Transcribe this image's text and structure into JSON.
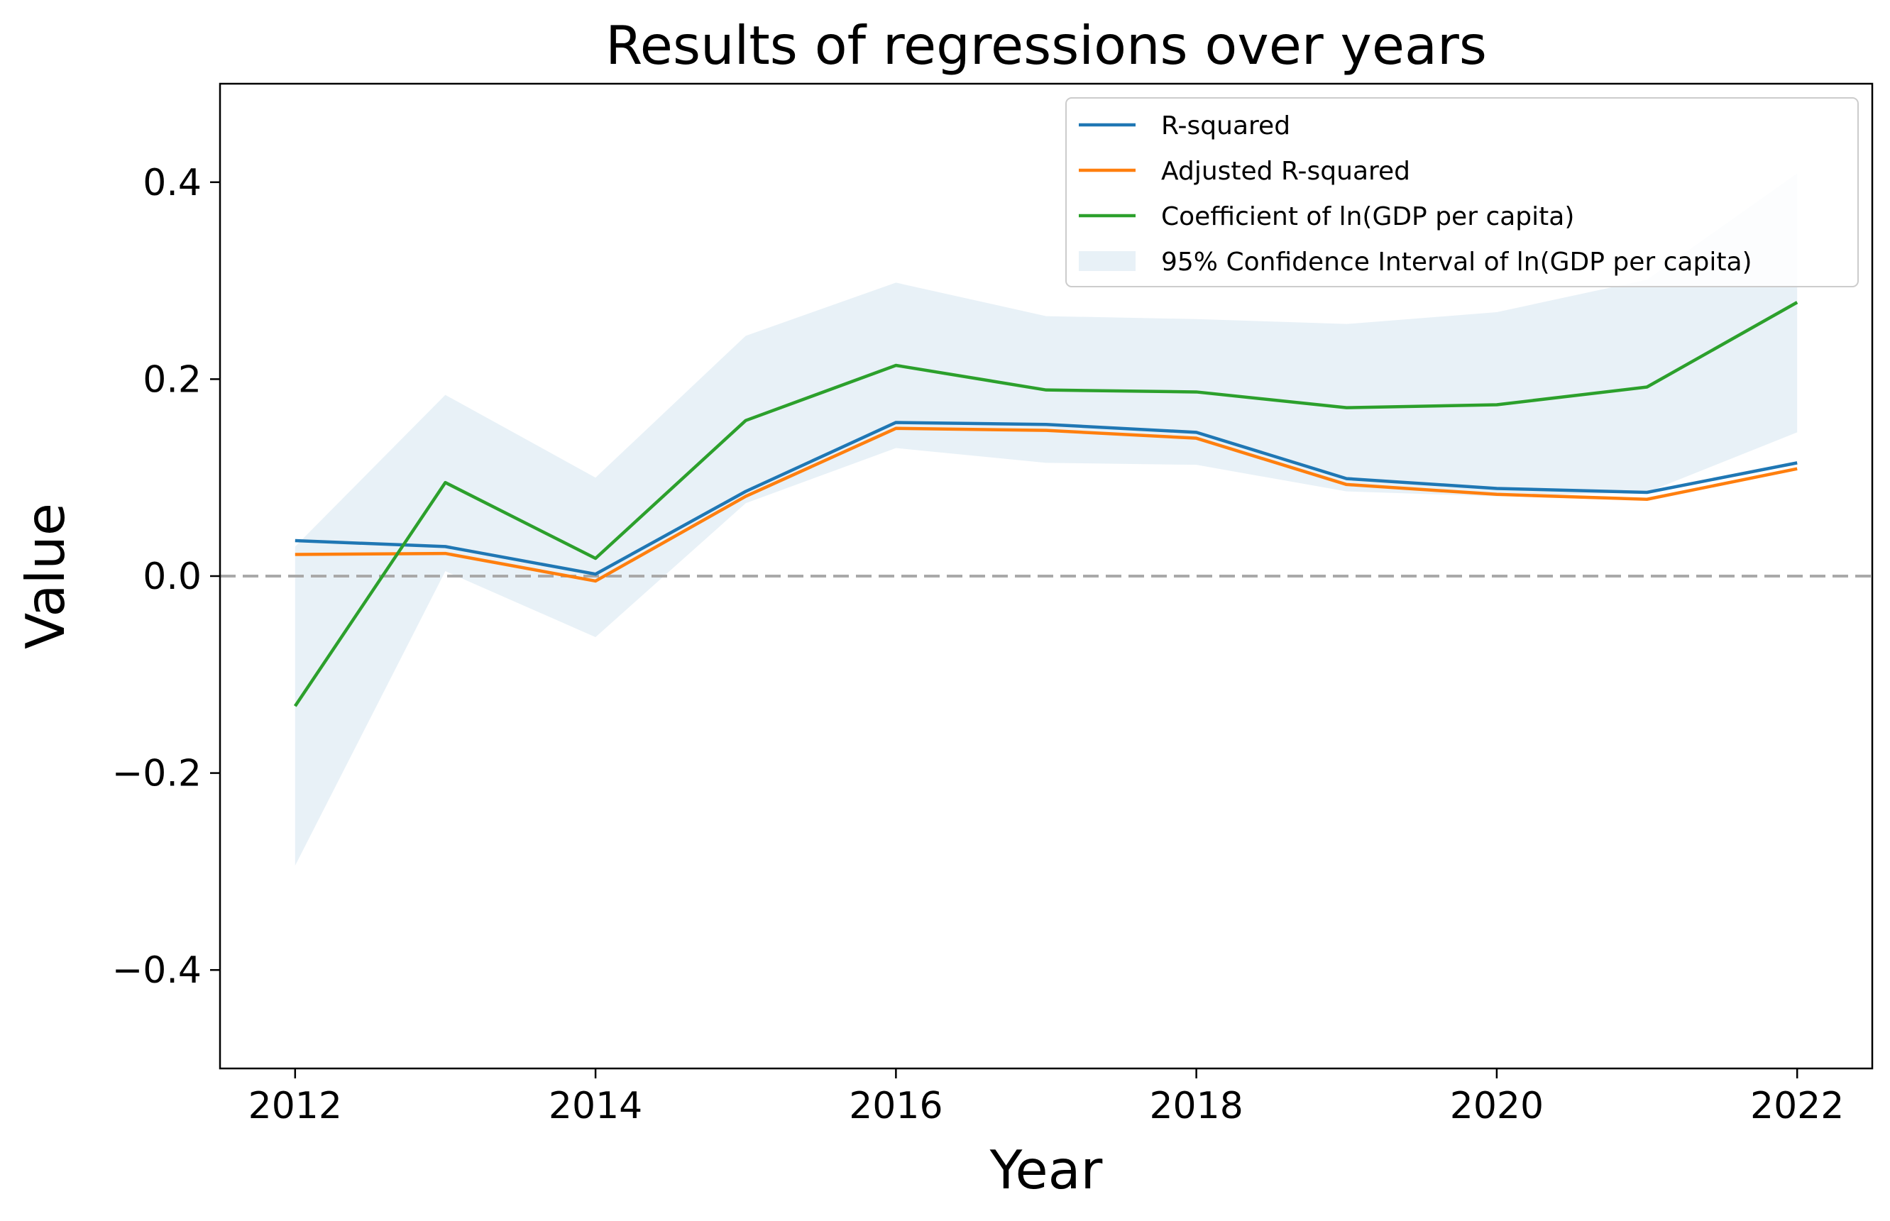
{
  "chart_data": {
    "type": "line",
    "title": "Results of regressions over years",
    "xlabel": "Year",
    "ylabel": "Value",
    "xlim": [
      2011.5,
      2022.5
    ],
    "ylim": [
      -0.5,
      0.5
    ],
    "x": [
      2012,
      2013,
      2014,
      2015,
      2016,
      2017,
      2018,
      2019,
      2020,
      2021,
      2022
    ],
    "xticks": [
      2012,
      2014,
      2016,
      2018,
      2020,
      2022
    ],
    "xtick_labels": [
      "2012",
      "2014",
      "2016",
      "2018",
      "2020",
      "2022"
    ],
    "yticks": [
      -0.4,
      -0.2,
      0.0,
      0.2,
      0.4
    ],
    "ytick_labels": [
      "−0.4",
      "−0.2",
      "0.0",
      "0.2",
      "0.4"
    ],
    "grid": false,
    "legend_position": "top-right",
    "reference_line": {
      "y": 0.0,
      "style": "dashed",
      "color": "#a9a9a9"
    },
    "series": [
      {
        "name": "R-squared",
        "color": "#1f77b4",
        "values": [
          0.036,
          0.03,
          0.002,
          0.086,
          0.156,
          0.154,
          0.146,
          0.099,
          0.089,
          0.085,
          0.115
        ]
      },
      {
        "name": "Adjusted R-squared",
        "color": "#ff7f0e",
        "values": [
          0.022,
          0.023,
          -0.005,
          0.081,
          0.15,
          0.148,
          0.14,
          0.093,
          0.083,
          0.078,
          0.109
        ]
      },
      {
        "name": "Coefficient of ln(GDP per capita)",
        "color": "#2ca02c",
        "values": [
          -0.132,
          0.095,
          0.018,
          0.158,
          0.214,
          0.189,
          0.187,
          0.171,
          0.174,
          0.192,
          0.278
        ]
      }
    ],
    "band": {
      "name": "95% Confidence Interval of ln(GDP per capita)",
      "color": "#1f77b4",
      "opacity": 0.1,
      "lower": [
        -0.294,
        0.005,
        -0.062,
        0.074,
        0.13,
        0.115,
        0.113,
        0.086,
        0.081,
        0.085,
        0.146
      ],
      "upper": [
        0.03,
        0.184,
        0.1,
        0.244,
        0.298,
        0.264,
        0.261,
        0.256,
        0.268,
        0.301,
        0.409
      ]
    }
  }
}
